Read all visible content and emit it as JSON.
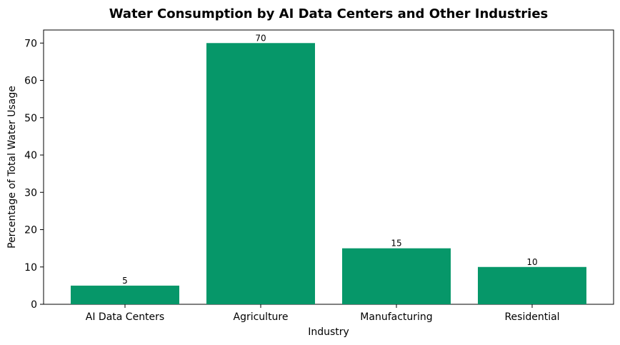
{
  "chart_data": {
    "type": "bar",
    "title": "Water Consumption by AI Data Centers and Other Industries",
    "xlabel": "Industry",
    "ylabel": "Percentage of Total Water Usage",
    "categories": [
      "AI Data Centers",
      "Agriculture",
      "Manufacturing",
      "Residential"
    ],
    "values": [
      5,
      70,
      15,
      10
    ],
    "data_labels": [
      "5",
      "70",
      "15",
      "10"
    ],
    "ylim": [
      0,
      73.5
    ],
    "yticks": [
      0,
      10,
      20,
      30,
      40,
      50,
      60,
      70
    ],
    "ytick_labels": [
      "0",
      "10",
      "20",
      "30",
      "40",
      "50",
      "60",
      "70"
    ],
    "bar_color": "#069769",
    "grid": false,
    "legend": "none"
  }
}
